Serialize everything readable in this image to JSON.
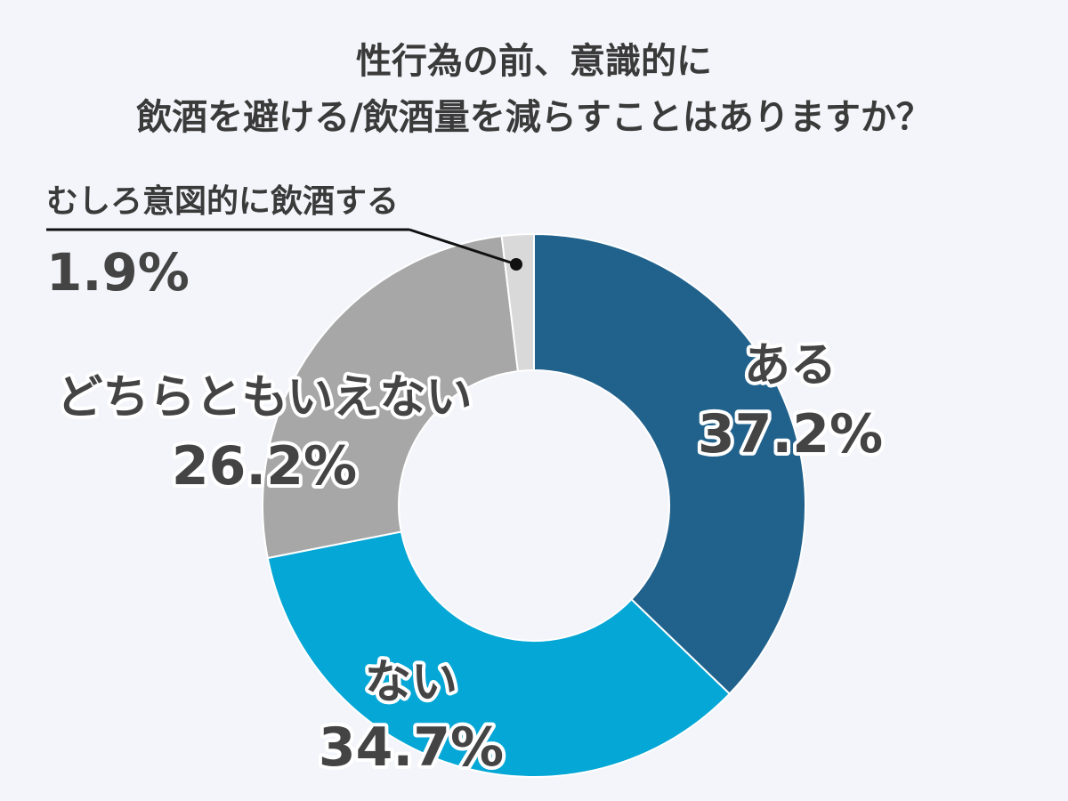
{
  "chart_data": {
    "type": "pie",
    "title_lines": [
      "性行為の前、意識的に",
      "飲酒を避ける/飲酒量を減らすことはありますか？"
    ],
    "categories": [
      "ある",
      "ない",
      "どちらともいえない",
      "むしろ意図的に飲酒する"
    ],
    "values": [
      37.2,
      34.7,
      26.2,
      1.9
    ],
    "value_labels": [
      "37.2%",
      "34.7%",
      "26.2%",
      "1.9%"
    ],
    "colors": [
      "#21628d",
      "#05a7d6",
      "#a7a7a7",
      "#d9d9d9"
    ],
    "donut": true,
    "start_angle": "12 o'clock",
    "direction": "clockwise"
  }
}
